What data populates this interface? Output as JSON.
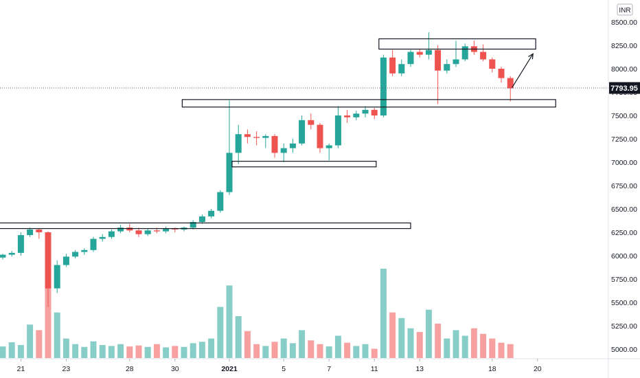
{
  "chart_data": {
    "type": "candlestick",
    "currency": "INR",
    "current_price": 7793.95,
    "current_price_label": "7793.95",
    "ylim": [
      4900,
      8650
    ],
    "y_ticks": [
      "8500.00",
      "8250.00",
      "8000.00",
      "7750.00",
      "7500.00",
      "7250.00",
      "7000.00",
      "6750.00",
      "6500.00",
      "6250.00",
      "6000.00",
      "5750.00",
      "5500.00",
      "5250.00",
      "5000.00"
    ],
    "x_ticks": [
      {
        "label": "21",
        "index": 2,
        "bold": false
      },
      {
        "label": "23",
        "index": 7,
        "bold": false
      },
      {
        "label": "28",
        "index": 14,
        "bold": false
      },
      {
        "label": "30",
        "index": 19,
        "bold": false
      },
      {
        "label": "2021",
        "index": 25,
        "bold": true
      },
      {
        "label": "5",
        "index": 31,
        "bold": false
      },
      {
        "label": "7",
        "index": 36,
        "bold": false
      },
      {
        "label": "11",
        "index": 41,
        "bold": false
      },
      {
        "label": "13",
        "index": 46,
        "bold": false
      },
      {
        "label": "18",
        "index": 54,
        "bold": false
      },
      {
        "label": "20",
        "index": 59,
        "bold": false
      }
    ],
    "candles": [
      [
        5980,
        6020,
        5960,
        6010
      ],
      [
        6010,
        6050,
        5990,
        6030
      ],
      [
        6030,
        6250,
        6000,
        6220
      ],
      [
        6220,
        6300,
        6200,
        6280
      ],
      [
        6280,
        6290,
        6180,
        6250
      ],
      [
        6250,
        6260,
        5450,
        5650
      ],
      [
        5650,
        5950,
        5600,
        5900
      ],
      [
        5900,
        6020,
        5880,
        5990
      ],
      [
        5990,
        6060,
        5970,
        6040
      ],
      [
        6040,
        6080,
        6010,
        6060
      ],
      [
        6060,
        6200,
        6040,
        6180
      ],
      [
        6180,
        6230,
        6150,
        6200
      ],
      [
        6200,
        6280,
        6180,
        6260
      ],
      [
        6260,
        6330,
        6240,
        6300
      ],
      [
        6300,
        6340,
        6250,
        6270
      ],
      [
        6270,
        6300,
        6200,
        6230
      ],
      [
        6230,
        6290,
        6210,
        6270
      ],
      [
        6270,
        6300,
        6240,
        6260
      ],
      [
        6260,
        6310,
        6240,
        6290
      ],
      [
        6290,
        6300,
        6250,
        6280
      ],
      [
        6280,
        6310,
        6260,
        6300
      ],
      [
        6300,
        6380,
        6280,
        6360
      ],
      [
        6360,
        6440,
        6340,
        6420
      ],
      [
        6420,
        6500,
        6400,
        6480
      ],
      [
        6480,
        6700,
        6460,
        6680
      ],
      [
        6680,
        7660,
        6650,
        7100
      ],
      [
        7100,
        7400,
        6980,
        7300
      ],
      [
        7300,
        7350,
        7200,
        7270
      ],
      [
        7270,
        7330,
        7180,
        7260
      ],
      [
        7260,
        7300,
        7150,
        7280
      ],
      [
        7280,
        7300,
        7050,
        7100
      ],
      [
        7100,
        7200,
        7000,
        7150
      ],
      [
        7150,
        7250,
        7100,
        7200
      ],
      [
        7200,
        7500,
        7180,
        7450
      ],
      [
        7450,
        7520,
        7350,
        7400
      ],
      [
        7400,
        7420,
        7100,
        7150
      ],
      [
        7150,
        7200,
        7020,
        7180
      ],
      [
        7180,
        7600,
        7150,
        7500
      ],
      [
        7500,
        7560,
        7420,
        7480
      ],
      [
        7480,
        7550,
        7450,
        7520
      ],
      [
        7520,
        7600,
        7480,
        7560
      ],
      [
        7560,
        7580,
        7460,
        7500
      ],
      [
        7500,
        8150,
        7480,
        8120
      ],
      [
        8120,
        8200,
        7920,
        7950
      ],
      [
        7950,
        8100,
        7920,
        8050
      ],
      [
        8050,
        8200,
        8020,
        8180
      ],
      [
        8180,
        8210,
        8120,
        8150
      ],
      [
        8150,
        8390,
        8100,
        8200
      ],
      [
        8200,
        8250,
        7620,
        7980
      ],
      [
        7980,
        8100,
        7950,
        8050
      ],
      [
        8050,
        8300,
        8020,
        8100
      ],
      [
        8100,
        8270,
        8080,
        8240
      ],
      [
        8240,
        8300,
        8150,
        8180
      ],
      [
        8180,
        8260,
        8080,
        8100
      ],
      [
        8100,
        8120,
        7960,
        8000
      ],
      [
        8000,
        8020,
        7850,
        7900
      ],
      [
        7900,
        7920,
        7650,
        7790
      ]
    ],
    "volume": [
      250,
      340,
      280,
      720,
      600,
      1850,
      980,
      420,
      300,
      240,
      360,
      280,
      260,
      300,
      250,
      270,
      240,
      300,
      230,
      260,
      240,
      320,
      350,
      420,
      1100,
      1560,
      900,
      580,
      300,
      260,
      350,
      420,
      320,
      600,
      380,
      300,
      250,
      480,
      330,
      260,
      300,
      200,
      1920,
      980,
      860,
      640,
      560,
      1040,
      740,
      420,
      600,
      480,
      640,
      520,
      420,
      330,
      300
    ],
    "vol_up": [
      true,
      true,
      true,
      true,
      false,
      false,
      true,
      true,
      true,
      true,
      true,
      true,
      true,
      true,
      false,
      false,
      true,
      false,
      true,
      false,
      true,
      true,
      true,
      true,
      true,
      true,
      true,
      false,
      false,
      true,
      false,
      true,
      true,
      true,
      false,
      false,
      true,
      true,
      false,
      true,
      true,
      false,
      true,
      false,
      true,
      true,
      false,
      true,
      false,
      true,
      true,
      true,
      false,
      false,
      false,
      false,
      false
    ],
    "boxes": [
      {
        "i1": -1.5,
        "i2": 45.0,
        "top": 6350,
        "bottom": 6290
      },
      {
        "i1": 25.3,
        "i2": 41.2,
        "top": 7010,
        "bottom": 6950
      },
      {
        "i1": 19.8,
        "i2": 61.0,
        "top": 7670,
        "bottom": 7590
      },
      {
        "i1": 41.5,
        "i2": 58.8,
        "top": 8320,
        "bottom": 8210
      }
    ],
    "arrow": {
      "i1": 56.2,
      "v1": 7800,
      "i2": 58.5,
      "v2": 8160
    }
  }
}
